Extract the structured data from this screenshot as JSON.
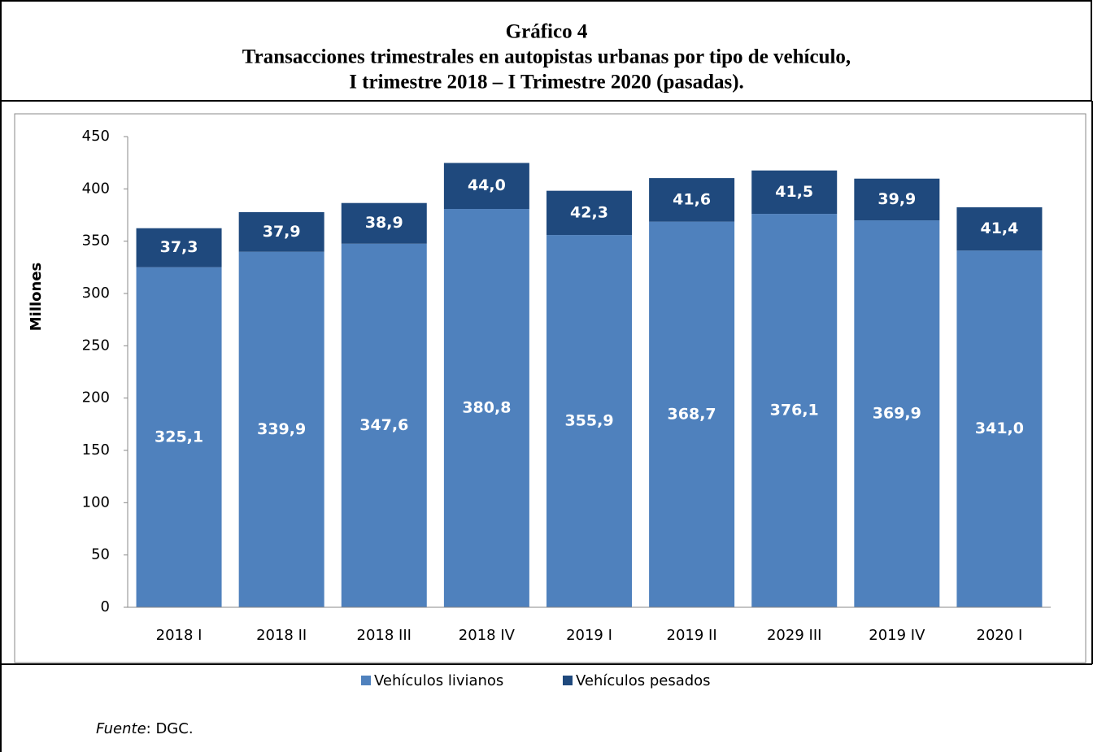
{
  "chart_data": {
    "type": "stacked_bar",
    "title_lines": [
      "Gráfico 4",
      "Transacciones trimestrales en autopistas urbanas por tipo de vehículo,",
      "I trimestre 2018 – I Trimestre 2020 (pasadas)."
    ],
    "y_label": "Millones",
    "categories": [
      "2018 I",
      "2018 II",
      "2018 III",
      "2018 IV",
      "2019 I",
      "2019 II",
      "2029 III",
      "2019 IV",
      "2020 I"
    ],
    "series": [
      {
        "name": "Vehículos livianos",
        "color": "#4f81bd",
        "values": [
          325.1,
          339.9,
          347.6,
          380.8,
          355.9,
          368.7,
          376.1,
          369.9,
          341.0
        ],
        "value_labels": [
          "325,1",
          "339,9",
          "347,6",
          "380,8",
          "355,9",
          "368,7",
          "376,1",
          "369,9",
          "341,0"
        ]
      },
      {
        "name": "Vehículos pesados",
        "color": "#1f497d",
        "values": [
          37.3,
          37.9,
          38.9,
          44.0,
          42.3,
          41.6,
          41.5,
          39.9,
          41.4
        ],
        "value_labels": [
          "37,3",
          "37,9",
          "38,9",
          "44,0",
          "42,3",
          "41,6",
          "41,5",
          "39,9",
          "41,4"
        ]
      }
    ],
    "ylim": [
      0,
      450
    ],
    "yticks": [
      0,
      50,
      100,
      150,
      200,
      250,
      300,
      350,
      400,
      450
    ],
    "legend": "bottom"
  },
  "source": {
    "label": "Fuente",
    "text": ": DGC."
  }
}
